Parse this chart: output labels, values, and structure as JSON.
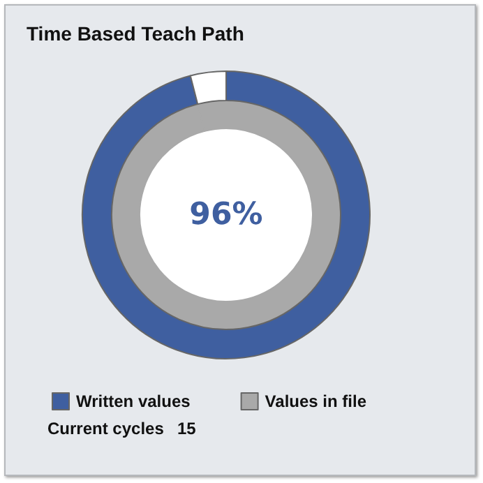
{
  "chart_data": {
    "type": "donut",
    "title": "Time Based Teach Path",
    "categories": [
      null,
      null
    ],
    "series": [
      {
        "name": "Values in file",
        "color": "#a9a9a9",
        "values": [
          96,
          4
        ],
        "colors": [
          "#a9a9a9",
          "#a9a9a9"
        ]
      },
      {
        "name": "Written values",
        "color": "#3f5fa0",
        "values": [
          96,
          4
        ],
        "colors": [
          "#3f5fa0",
          "#ffffff"
        ],
        "value_labels": [
          "96%",
          null
        ]
      }
    ],
    "legend": "bottom left",
    "annotations": [
      "Current cycles",
      "15"
    ]
  }
}
